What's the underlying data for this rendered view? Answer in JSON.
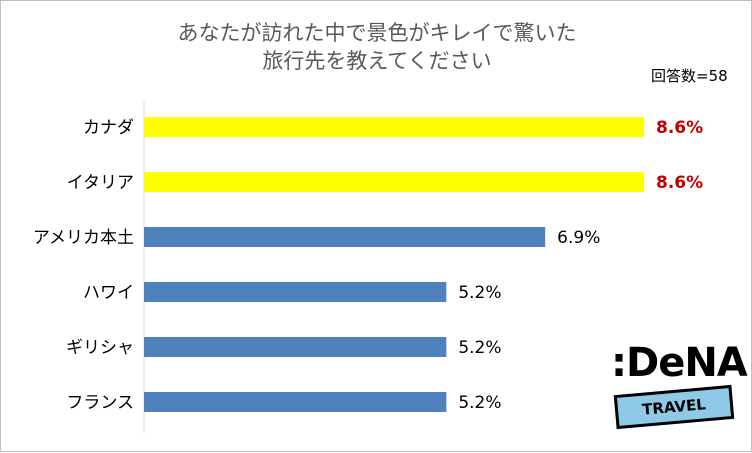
{
  "title_line1": "あなたが訪れた中で景色がキレイで驚いた",
  "title_line2": "旅行先を教えてください",
  "respondents": "回答数=58",
  "logo": {
    "word": ":DeNA",
    "band": "TRAVEL"
  },
  "colors": {
    "highlight": "#ffff00",
    "bar": "#4f81bd",
    "highlight_text": "#c00000",
    "text": "#000000"
  },
  "chart_data": {
    "type": "bar",
    "orientation": "horizontal",
    "categories": [
      "カナダ",
      "イタリア",
      "アメリカ本土",
      "ハワイ",
      "ギリシャ",
      "フランス"
    ],
    "values": [
      8.6,
      8.6,
      6.9,
      5.2,
      5.2,
      5.2
    ],
    "value_labels": [
      "8.6%",
      "8.6%",
      "6.9%",
      "5.2%",
      "5.2%",
      "5.2%"
    ],
    "highlighted": [
      true,
      true,
      false,
      false,
      false,
      false
    ],
    "unit": "%",
    "grid": false,
    "legend": "none"
  }
}
